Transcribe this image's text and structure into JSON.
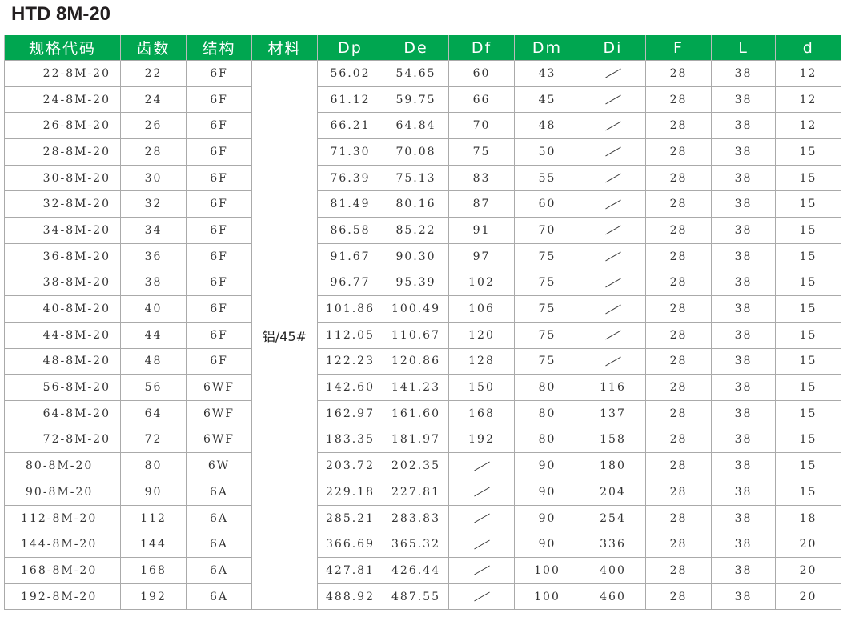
{
  "title": "HTD 8M-20",
  "headers": [
    "规格代码",
    "齿数",
    "结构",
    "材料",
    "Dp",
    "De",
    "Df",
    "Dm",
    "Di",
    "F",
    "L",
    "d"
  ],
  "material": "铝/45#",
  "rows": [
    [
      "22-8M-20",
      "22",
      "6F",
      "56.02",
      "54.65",
      "60",
      "43",
      "/",
      "28",
      "38",
      "12"
    ],
    [
      "24-8M-20",
      "24",
      "6F",
      "61.12",
      "59.75",
      "66",
      "45",
      "/",
      "28",
      "38",
      "12"
    ],
    [
      "26-8M-20",
      "26",
      "6F",
      "66.21",
      "64.84",
      "70",
      "48",
      "/",
      "28",
      "38",
      "12"
    ],
    [
      "28-8M-20",
      "28",
      "6F",
      "71.30",
      "70.08",
      "75",
      "50",
      "/",
      "28",
      "38",
      "15"
    ],
    [
      "30-8M-20",
      "30",
      "6F",
      "76.39",
      "75.13",
      "83",
      "55",
      "/",
      "28",
      "38",
      "15"
    ],
    [
      "32-8M-20",
      "32",
      "6F",
      "81.49",
      "80.16",
      "87",
      "60",
      "/",
      "28",
      "38",
      "15"
    ],
    [
      "34-8M-20",
      "34",
      "6F",
      "86.58",
      "85.22",
      "91",
      "70",
      "/",
      "28",
      "38",
      "15"
    ],
    [
      "36-8M-20",
      "36",
      "6F",
      "91.67",
      "90.30",
      "97",
      "75",
      "/",
      "28",
      "38",
      "15"
    ],
    [
      "38-8M-20",
      "38",
      "6F",
      "96.77",
      "95.39",
      "102",
      "75",
      "/",
      "28",
      "38",
      "15"
    ],
    [
      "40-8M-20",
      "40",
      "6F",
      "101.86",
      "100.49",
      "106",
      "75",
      "/",
      "28",
      "38",
      "15"
    ],
    [
      "44-8M-20",
      "44",
      "6F",
      "112.05",
      "110.67",
      "120",
      "75",
      "/",
      "28",
      "38",
      "15"
    ],
    [
      "48-8M-20",
      "48",
      "6F",
      "122.23",
      "120.86",
      "128",
      "75",
      "/",
      "28",
      "38",
      "15"
    ],
    [
      "56-8M-20",
      "56",
      "6WF",
      "142.60",
      "141.23",
      "150",
      "80",
      "116",
      "28",
      "38",
      "15"
    ],
    [
      "64-8M-20",
      "64",
      "6WF",
      "162.97",
      "161.60",
      "168",
      "80",
      "137",
      "28",
      "38",
      "15"
    ],
    [
      "72-8M-20",
      "72",
      "6WF",
      "183.35",
      "181.97",
      "192",
      "80",
      "158",
      "28",
      "38",
      "15"
    ],
    [
      "80-8M-20",
      "80",
      "6W",
      "203.72",
      "202.35",
      "/",
      "90",
      "180",
      "28",
      "38",
      "15"
    ],
    [
      "90-8M-20",
      "90",
      "6A",
      "229.18",
      "227.81",
      "/",
      "90",
      "204",
      "28",
      "38",
      "15"
    ],
    [
      "112-8M-20",
      "112",
      "6A",
      "285.21",
      "283.83",
      "/",
      "90",
      "254",
      "28",
      "38",
      "18"
    ],
    [
      "144-8M-20",
      "144",
      "6A",
      "366.69",
      "365.32",
      "/",
      "90",
      "336",
      "28",
      "38",
      "20"
    ],
    [
      "168-8M-20",
      "168",
      "6A",
      "427.81",
      "426.44",
      "/",
      "100",
      "400",
      "28",
      "38",
      "20"
    ],
    [
      "192-8M-20",
      "192",
      "6A",
      "488.92",
      "487.55",
      "/",
      "100",
      "460",
      "28",
      "38",
      "20"
    ]
  ]
}
